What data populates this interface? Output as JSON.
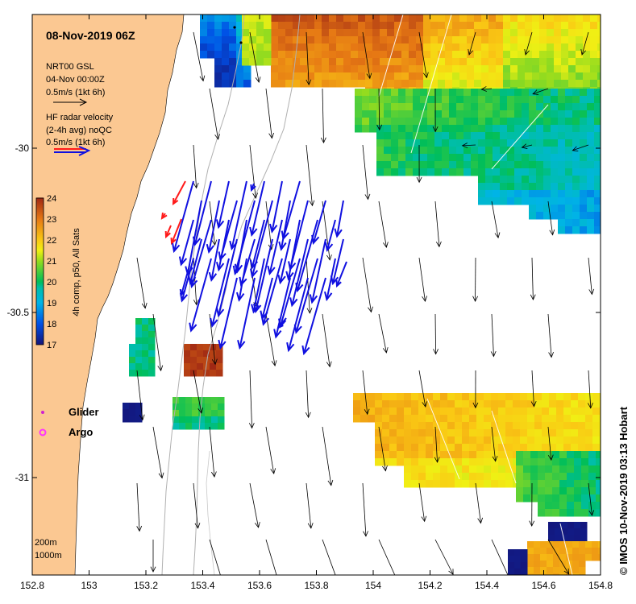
{
  "map": {
    "date_title": "08-Nov-2019 06Z",
    "credit": "© IMOS 10-Nov-2019 03:13 Hobart",
    "x_ticks": [
      "152.8",
      "153",
      "153.2",
      "153.4",
      "153.6",
      "153.8",
      "154",
      "154.2",
      "154.4",
      "154.6",
      "154.8"
    ],
    "y_ticks": [
      "-30",
      "-30.5",
      "-31"
    ],
    "lon_range": [
      152.8,
      154.8
    ],
    "lat_range": [
      -31.25,
      -29.6
    ],
    "colors": {
      "land": "#fbc892",
      "radar_arrow_red": "#ff1a1a",
      "radar_arrow_blue": "#1010e0",
      "current_arrow": "#000000",
      "glider_marker": "#d020d0",
      "argo_marker": "#ff33ff"
    }
  },
  "legend": {
    "current_title": "NRT00 GSL",
    "current_date": "04-Nov 00:00Z",
    "current_scale": "0.5m/s (1kt 6h)",
    "radar_title": "HF radar velocity",
    "radar_subtitle": "(2-4h avg) noQC",
    "radar_scale": "0.5m/s (1kt 6h)",
    "glider_label": "Glider",
    "argo_label": "Argo",
    "depth_200": "200m",
    "depth_1000": "1000m"
  },
  "colorbar": {
    "label": "4h comp, p50, All Sats",
    "ticks": [
      "24",
      "23",
      "22",
      "21",
      "20",
      "19",
      "18",
      "17"
    ],
    "min": 17,
    "max": 24
  }
}
